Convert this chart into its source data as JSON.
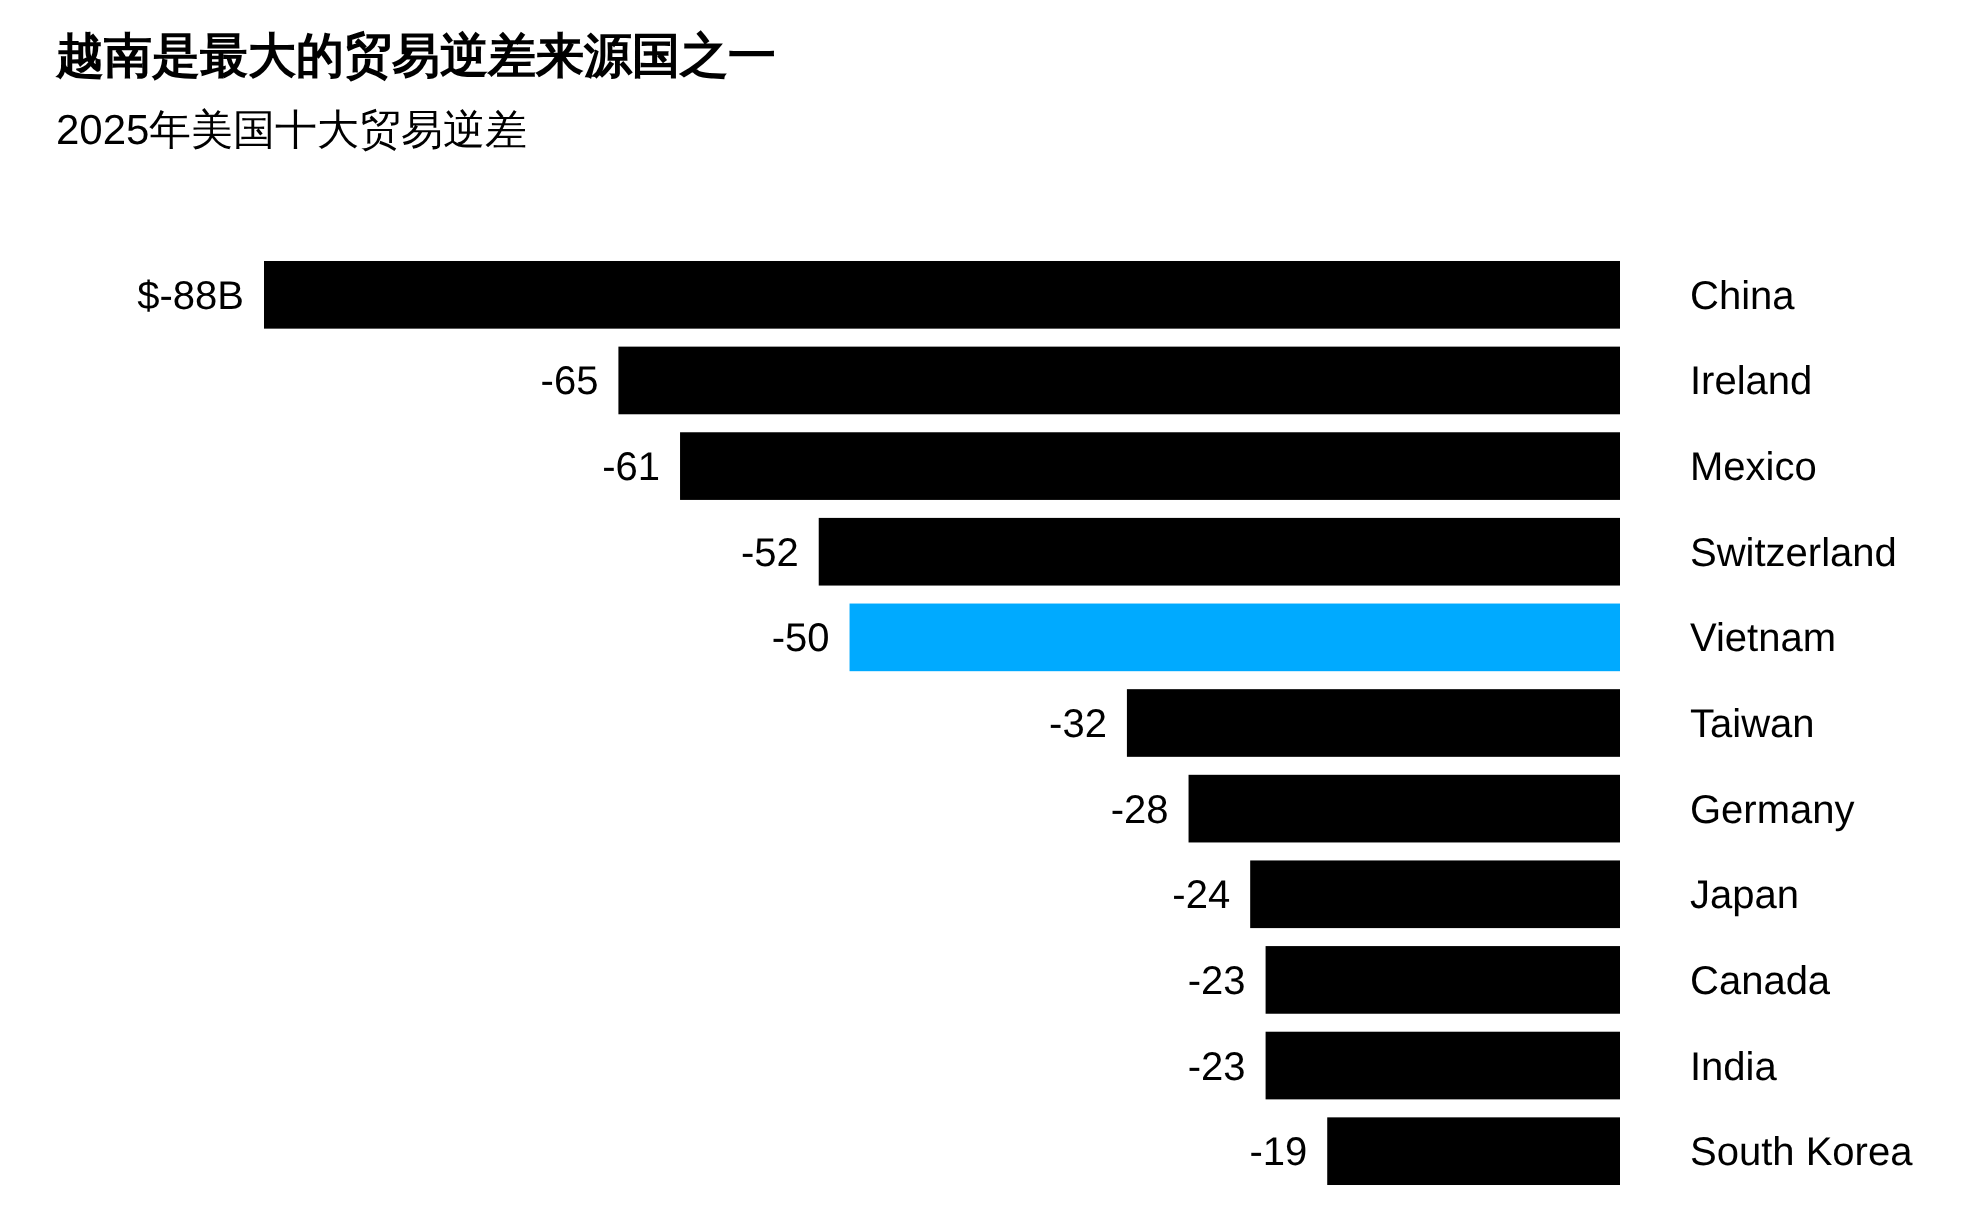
{
  "chart_data": {
    "type": "bar",
    "orientation": "horizontal",
    "title": "越南是最大的贸易逆差来源国之一",
    "subtitle": "2025年美国十大贸易逆差",
    "categories": [
      "China",
      "Ireland",
      "Mexico",
      "Switzerland",
      "Vietnam",
      "Taiwan",
      "Germany",
      "Japan",
      "Canada",
      "India",
      "South Korea"
    ],
    "values": [
      -88,
      -65,
      -61,
      -52,
      -50,
      -32,
      -28,
      -24,
      -23,
      -23,
      -19
    ],
    "colors": [
      "#000000",
      "#000000",
      "#000000",
      "#000000",
      "#00aaff",
      "#000000",
      "#000000",
      "#000000",
      "#000000",
      "#000000",
      "#000000"
    ],
    "value_labels": [
      "$-88B",
      "-65",
      "-61",
      "-52",
      "-50",
      "-32",
      "-28",
      "-24",
      "-23",
      "-23",
      "-19"
    ]
  }
}
